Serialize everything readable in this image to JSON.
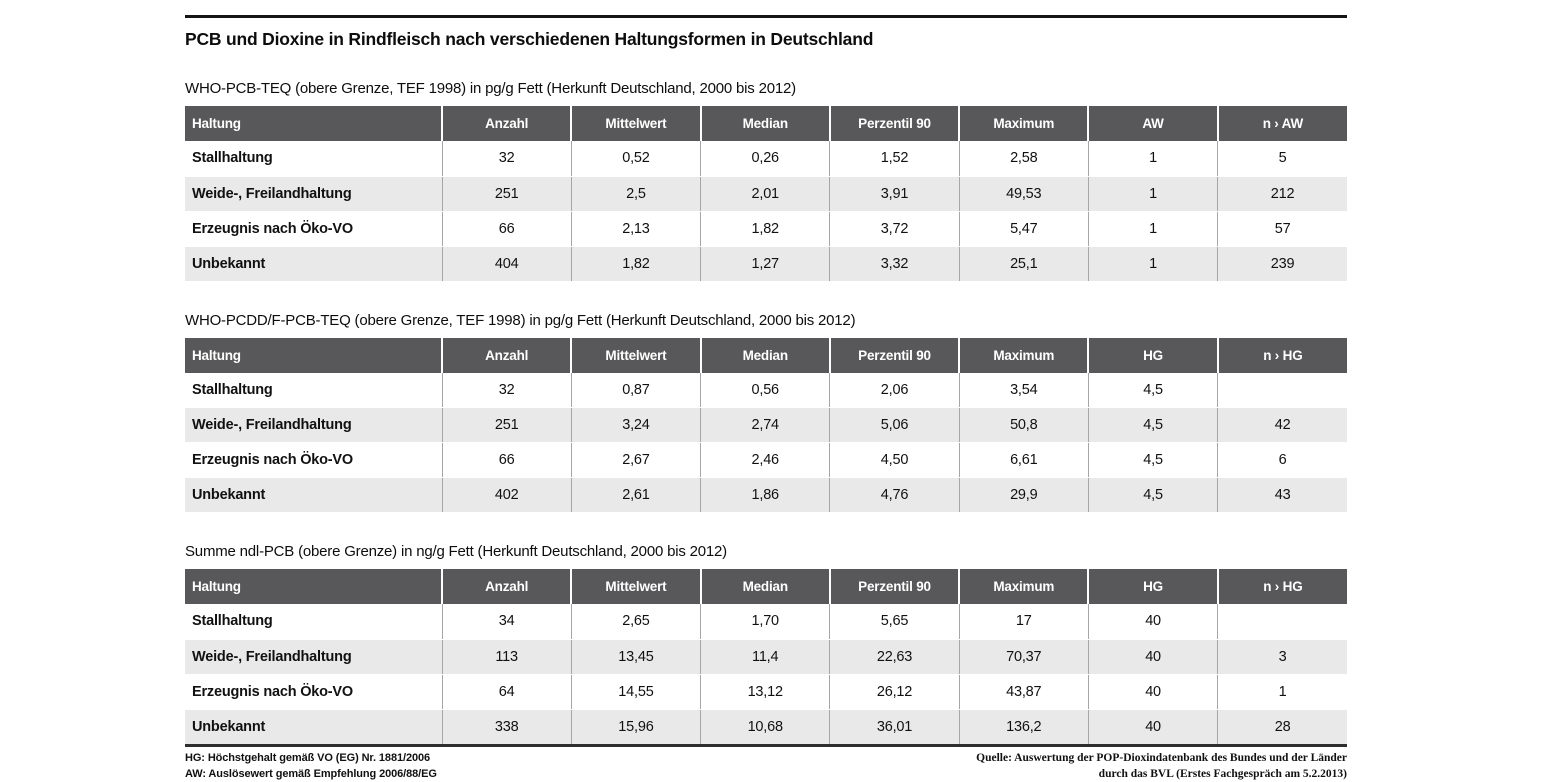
{
  "page_title": "PCB und Dioxine in Rindfleisch nach verschiedenen Haltungsformen in Deutschland",
  "colors": {
    "header_bg": "#58585a",
    "stripe_bg": "#e9e9e9",
    "rule": "#141414"
  },
  "tables": [
    {
      "subtitle": "WHO-PCB-TEQ (obere Grenze, TEF 1998) in pg/g Fett (Herkunft Deutschland, 2000 bis 2012)",
      "columns": [
        "Haltung",
        "Anzahl",
        "Mittelwert",
        "Median",
        "Perzentil 90",
        "Maximum",
        "AW",
        "n › AW"
      ],
      "rows": [
        [
          "Stallhaltung",
          "32",
          "0,52",
          "0,26",
          "1,52",
          "2,58",
          "1",
          "5"
        ],
        [
          "Weide-, Freilandhaltung",
          "251",
          "2,5",
          "2,01",
          "3,91",
          "49,53",
          "1",
          "212"
        ],
        [
          "Erzeugnis nach Öko-VO",
          "66",
          "2,13",
          "1,82",
          "3,72",
          "5,47",
          "1",
          "57"
        ],
        [
          "Unbekannt",
          "404",
          "1,82",
          "1,27",
          "3,32",
          "25,1",
          "1",
          "239"
        ]
      ]
    },
    {
      "subtitle": "WHO-PCDD/F-PCB-TEQ (obere Grenze, TEF 1998) in pg/g Fett (Herkunft Deutschland, 2000 bis 2012)",
      "columns": [
        "Haltung",
        "Anzahl",
        "Mittelwert",
        "Median",
        "Perzentil 90",
        "Maximum",
        "HG",
        "n › HG"
      ],
      "rows": [
        [
          "Stallhaltung",
          "32",
          "0,87",
          "0,56",
          "2,06",
          "3,54",
          "4,5",
          ""
        ],
        [
          "Weide-, Freilandhaltung",
          "251",
          "3,24",
          "2,74",
          "5,06",
          "50,8",
          "4,5",
          "42"
        ],
        [
          "Erzeugnis nach Öko-VO",
          "66",
          "2,67",
          "2,46",
          "4,50",
          "6,61",
          "4,5",
          "6"
        ],
        [
          "Unbekannt",
          "402",
          "2,61",
          "1,86",
          "4,76",
          "29,9",
          "4,5",
          "43"
        ]
      ]
    },
    {
      "subtitle": "Summe ndl-PCB (obere Grenze) in ng/g Fett (Herkunft Deutschland, 2000 bis 2012)",
      "columns": [
        "Haltung",
        "Anzahl",
        "Mittelwert",
        "Median",
        "Perzentil 90",
        "Maximum",
        "HG",
        "n › HG"
      ],
      "rows": [
        [
          "Stallhaltung",
          "34",
          "2,65",
          "1,70",
          "5,65",
          "17",
          "40",
          ""
        ],
        [
          "Weide-, Freilandhaltung",
          "113",
          "13,45",
          "11,4",
          "22,63",
          "70,37",
          "40",
          "3"
        ],
        [
          "Erzeugnis nach Öko-VO",
          "64",
          "14,55",
          "13,12",
          "26,12",
          "43,87",
          "40",
          "1"
        ],
        [
          "Unbekannt",
          "338",
          "15,96",
          "10,68",
          "36,01",
          "136,2",
          "40",
          "28"
        ]
      ]
    }
  ],
  "footnotes": {
    "left": [
      "HG: Höchstgehalt gemäß VO (EG) Nr. 1881/2006",
      "AW: Auslösewert gemäß Empfehlung 2006/88/EG"
    ],
    "right": [
      "Quelle: Auswertung der POP-Dioxindatenbank des Bundes und der Länder",
      "durch das BVL (Erstes Fachgespräch am 5.2.2013)"
    ]
  }
}
